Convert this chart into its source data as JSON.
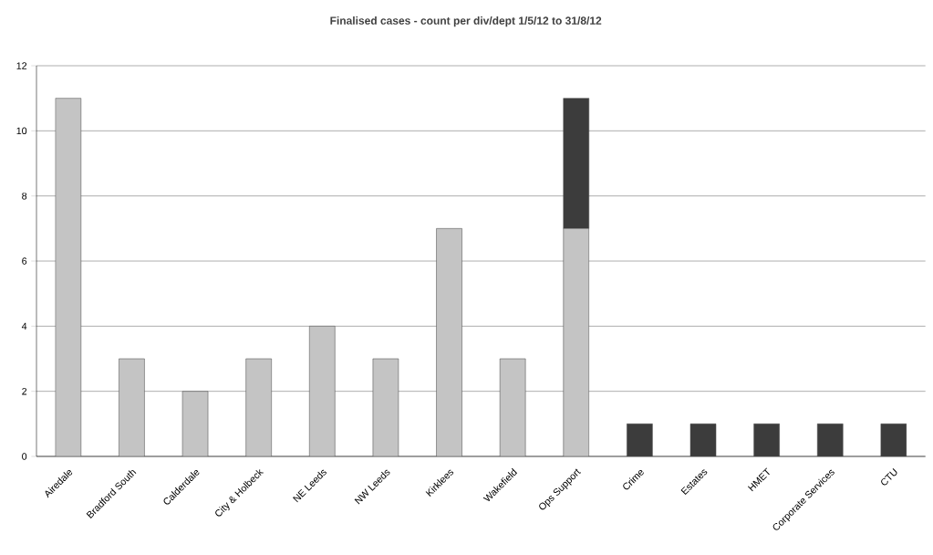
{
  "chart_data": {
    "type": "bar",
    "title": "Finalised cases - count per div/dept 1/5/12 to 31/8/12",
    "categories": [
      "Airedale",
      "Bradford South",
      "Calderdale",
      "City & Holbeck",
      "NE Leeds",
      "NW Leeds",
      "Kirklees",
      "Wakefield",
      "Ops Support",
      "Crime",
      "Estates",
      "HMET",
      "Corporate Services",
      "CTU"
    ],
    "series": [
      {
        "color": "#c4c4c4",
        "values": [
          11,
          3,
          2,
          3,
          4,
          3,
          7,
          3,
          7,
          0,
          0,
          0,
          0,
          0
        ]
      },
      {
        "color": "#3c3c3c",
        "values": [
          0,
          0,
          0,
          0,
          0,
          0,
          0,
          0,
          4,
          1,
          1,
          1,
          1,
          1
        ]
      }
    ],
    "stacked": true,
    "ylim": [
      0,
      12
    ],
    "yticks": [
      0,
      2,
      4,
      6,
      8,
      10,
      12
    ],
    "grid": "y"
  }
}
